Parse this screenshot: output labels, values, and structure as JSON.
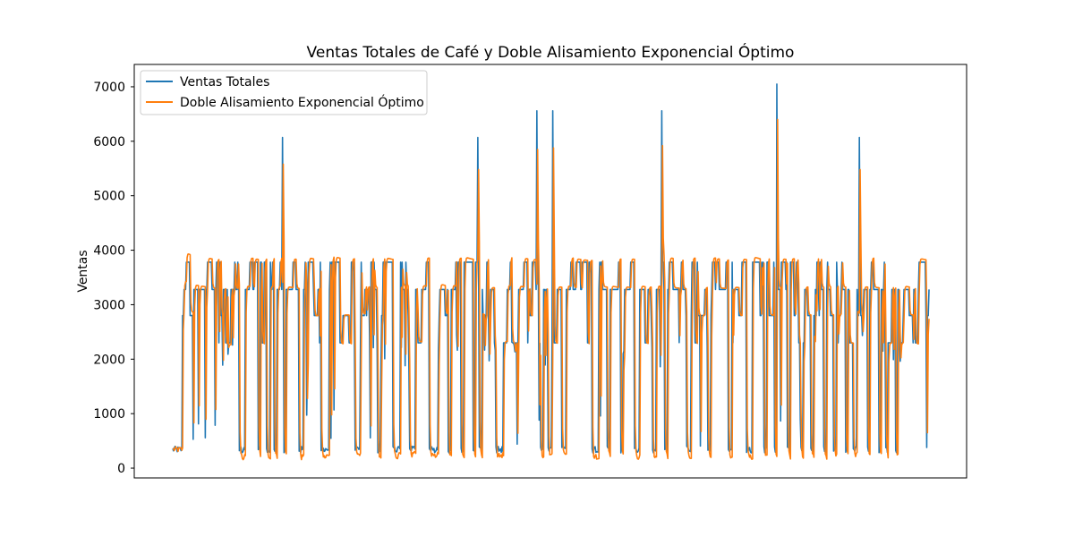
{
  "chart_data": {
    "type": "line",
    "title": "Ventas Totales de Café y Doble Alisamiento Exponencial Óptimo",
    "xlabel": "",
    "ylabel": "Ventas",
    "ylim": [
      -180,
      7410
    ],
    "yticks": [
      0,
      1000,
      2000,
      3000,
      4000,
      5000,
      6000,
      7000
    ],
    "grid": false,
    "legend_position": "top-left",
    "x_count": 1000,
    "colors": {
      "Ventas Totales": "#1f77b4",
      "Doble Alisamiento Exponencial Óptimo": "#ff7f0e"
    },
    "low_segments": [
      [
        0,
        12
      ],
      [
        88,
        95
      ],
      [
        113,
        115
      ],
      [
        124,
        128
      ],
      [
        134,
        137
      ],
      [
        146,
        149
      ],
      [
        167,
        172
      ],
      [
        196,
        206
      ],
      [
        241,
        247
      ],
      [
        271,
        274
      ],
      [
        291,
        300
      ],
      [
        313,
        320
      ],
      [
        339,
        350
      ],
      [
        364,
        367
      ],
      [
        381,
        384
      ],
      [
        397,
        399
      ],
      [
        405,
        408
      ],
      [
        427,
        436
      ],
      [
        486,
        489
      ],
      [
        496,
        500
      ],
      [
        514,
        519
      ],
      [
        554,
        562
      ],
      [
        574,
        577
      ],
      [
        592,
        594
      ],
      [
        610,
        616
      ],
      [
        634,
        638
      ],
      [
        650,
        653
      ],
      [
        679,
        684
      ],
      [
        707,
        710
      ],
      [
        734,
        737
      ],
      [
        758,
        765
      ],
      [
        781,
        784
      ],
      [
        795,
        798
      ],
      [
        812,
        815
      ],
      [
        830,
        832
      ],
      [
        843,
        846
      ],
      [
        860,
        863
      ],
      [
        873,
        876
      ],
      [
        889,
        891
      ],
      [
        899,
        903
      ],
      [
        918,
        920
      ],
      [
        933,
        935
      ],
      [
        942,
        944
      ],
      [
        955,
        957
      ]
    ],
    "peaks": [
      [
        145,
        6070
      ],
      [
        403,
        6070
      ],
      [
        481,
        6560
      ],
      [
        502,
        6560
      ],
      [
        646,
        6560
      ],
      [
        798,
        7050
      ],
      [
        907,
        6070
      ]
    ],
    "smoothed_peaks": [
      [
        145,
        5580
      ],
      [
        403,
        5480
      ],
      [
        481,
        5850
      ],
      [
        502,
        5880
      ],
      [
        646,
        5920
      ],
      [
        798,
        6400
      ],
      [
        907,
        5480
      ]
    ],
    "series": [
      {
        "name": "Ventas Totales",
        "values": []
      },
      {
        "name": "Doble Alisamiento Exponencial Óptimo",
        "values": []
      }
    ]
  }
}
